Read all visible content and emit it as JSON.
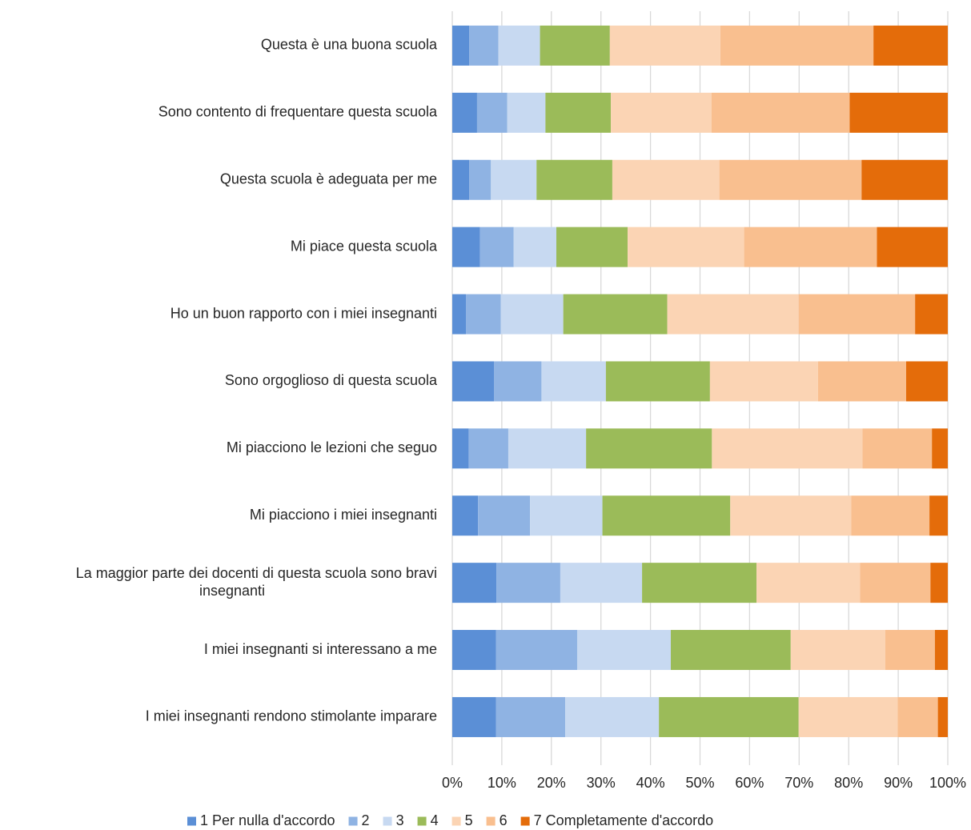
{
  "chart_data": {
    "type": "bar",
    "orientation": "horizontal",
    "stacked": "percent",
    "categories": [
      "Questa è una buona scuola",
      "Sono contento di frequentare questa scuola",
      "Questa scuola è adeguata per me",
      "Mi piace questa scuola",
      "Ho un buon rapporto con i miei insegnanti",
      "Sono orgoglioso di questa scuola",
      "Mi piacciono le lezioni che seguo",
      "Mi piacciono i miei insegnanti",
      "La maggior parte dei docenti di questa scuola sono bravi insegnanti",
      "I miei insegnanti si interessano a me",
      "I miei insegnanti rendono stimolante imparare"
    ],
    "category_lines": [
      [
        "Questa è una buona scuola"
      ],
      [
        "Sono contento di frequentare questa scuola"
      ],
      [
        "Questa scuola è adeguata per me"
      ],
      [
        "Mi piace questa scuola"
      ],
      [
        "Ho un buon rapporto con i miei insegnanti"
      ],
      [
        "Sono orgoglioso di questa scuola"
      ],
      [
        "Mi piacciono le lezioni che seguo"
      ],
      [
        "Mi piacciono i miei insegnanti"
      ],
      [
        "La maggior parte dei docenti di questa scuola sono bravi",
        "insegnanti"
      ],
      [
        "I miei insegnanti si interessano a me"
      ],
      [
        "I miei insegnanti rendono stimolante imparare"
      ]
    ],
    "series": [
      {
        "name": "1 Per nulla d'accordo",
        "color": "#5B8FD6",
        "values": [
          3.4,
          5.0,
          3.4,
          5.6,
          2.8,
          8.4,
          3.3,
          5.2,
          8.9,
          8.8,
          8.8
        ]
      },
      {
        "name": "2",
        "color": "#8FB3E3",
        "values": [
          5.9,
          6.1,
          4.4,
          6.8,
          7.0,
          9.6,
          8.0,
          10.5,
          12.9,
          16.4,
          14.0
        ]
      },
      {
        "name": "3",
        "color": "#C7D9F1",
        "values": [
          8.4,
          7.7,
          9.2,
          8.6,
          12.6,
          13.0,
          15.7,
          14.6,
          16.5,
          18.9,
          18.9
        ]
      },
      {
        "name": "4",
        "color": "#9BBB59",
        "values": [
          14.1,
          13.2,
          15.3,
          14.4,
          21.0,
          21.0,
          25.4,
          25.8,
          23.1,
          24.2,
          28.2
        ]
      },
      {
        "name": "5",
        "color": "#FBD4B4",
        "values": [
          22.3,
          20.3,
          21.6,
          23.5,
          26.5,
          21.8,
          30.4,
          24.4,
          20.9,
          19.1,
          20.0
        ]
      },
      {
        "name": "6",
        "color": "#F9BF8F",
        "values": [
          30.9,
          27.9,
          28.7,
          26.8,
          23.5,
          17.8,
          14.0,
          15.8,
          14.2,
          10.0,
          8.1
        ]
      },
      {
        "name": "7 Completamente d'accordo",
        "color": "#E46C0A",
        "values": [
          15.0,
          19.8,
          17.4,
          14.3,
          6.6,
          8.4,
          3.2,
          3.7,
          3.5,
          2.6,
          2.0
        ]
      }
    ],
    "xlim": [
      0,
      100
    ],
    "xticks": [
      "0%",
      "10%",
      "20%",
      "30%",
      "40%",
      "50%",
      "60%",
      "70%",
      "80%",
      "90%",
      "100%"
    ],
    "grid": true,
    "legend_position": "bottom"
  }
}
